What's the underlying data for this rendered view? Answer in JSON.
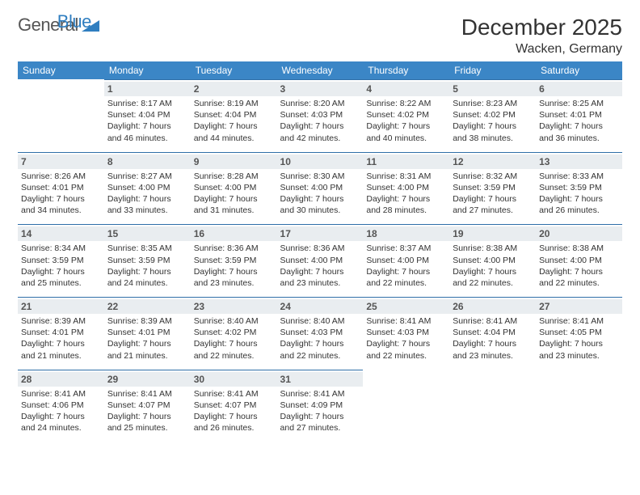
{
  "logo": {
    "word1": "General",
    "word2": "Blue",
    "triangle_color": "#2f7ec0"
  },
  "header": {
    "month_title": "December 2025",
    "location": "Wacken, Germany"
  },
  "colors": {
    "header_bg": "#3b86c6",
    "header_text": "#ffffff",
    "cell_border": "#2f6fa8",
    "daynum_bg": "#e9edf0",
    "daynum_text": "#555555",
    "body_text": "#333333",
    "page_bg": "#ffffff"
  },
  "typography": {
    "title_fontsize": 28,
    "location_fontsize": 16,
    "weekday_fontsize": 12,
    "daynum_fontsize": 12,
    "info_fontsize": 10.5
  },
  "weekdays": [
    "Sunday",
    "Monday",
    "Tuesday",
    "Wednesday",
    "Thursday",
    "Friday",
    "Saturday"
  ],
  "weeks": [
    [
      null,
      {
        "day": "1",
        "sunrise": "Sunrise: 8:17 AM",
        "sunset": "Sunset: 4:04 PM",
        "daylight": "Daylight: 7 hours and 46 minutes."
      },
      {
        "day": "2",
        "sunrise": "Sunrise: 8:19 AM",
        "sunset": "Sunset: 4:04 PM",
        "daylight": "Daylight: 7 hours and 44 minutes."
      },
      {
        "day": "3",
        "sunrise": "Sunrise: 8:20 AM",
        "sunset": "Sunset: 4:03 PM",
        "daylight": "Daylight: 7 hours and 42 minutes."
      },
      {
        "day": "4",
        "sunrise": "Sunrise: 8:22 AM",
        "sunset": "Sunset: 4:02 PM",
        "daylight": "Daylight: 7 hours and 40 minutes."
      },
      {
        "day": "5",
        "sunrise": "Sunrise: 8:23 AM",
        "sunset": "Sunset: 4:02 PM",
        "daylight": "Daylight: 7 hours and 38 minutes."
      },
      {
        "day": "6",
        "sunrise": "Sunrise: 8:25 AM",
        "sunset": "Sunset: 4:01 PM",
        "daylight": "Daylight: 7 hours and 36 minutes."
      }
    ],
    [
      {
        "day": "7",
        "sunrise": "Sunrise: 8:26 AM",
        "sunset": "Sunset: 4:01 PM",
        "daylight": "Daylight: 7 hours and 34 minutes."
      },
      {
        "day": "8",
        "sunrise": "Sunrise: 8:27 AM",
        "sunset": "Sunset: 4:00 PM",
        "daylight": "Daylight: 7 hours and 33 minutes."
      },
      {
        "day": "9",
        "sunrise": "Sunrise: 8:28 AM",
        "sunset": "Sunset: 4:00 PM",
        "daylight": "Daylight: 7 hours and 31 minutes."
      },
      {
        "day": "10",
        "sunrise": "Sunrise: 8:30 AM",
        "sunset": "Sunset: 4:00 PM",
        "daylight": "Daylight: 7 hours and 30 minutes."
      },
      {
        "day": "11",
        "sunrise": "Sunrise: 8:31 AM",
        "sunset": "Sunset: 4:00 PM",
        "daylight": "Daylight: 7 hours and 28 minutes."
      },
      {
        "day": "12",
        "sunrise": "Sunrise: 8:32 AM",
        "sunset": "Sunset: 3:59 PM",
        "daylight": "Daylight: 7 hours and 27 minutes."
      },
      {
        "day": "13",
        "sunrise": "Sunrise: 8:33 AM",
        "sunset": "Sunset: 3:59 PM",
        "daylight": "Daylight: 7 hours and 26 minutes."
      }
    ],
    [
      {
        "day": "14",
        "sunrise": "Sunrise: 8:34 AM",
        "sunset": "Sunset: 3:59 PM",
        "daylight": "Daylight: 7 hours and 25 minutes."
      },
      {
        "day": "15",
        "sunrise": "Sunrise: 8:35 AM",
        "sunset": "Sunset: 3:59 PM",
        "daylight": "Daylight: 7 hours and 24 minutes."
      },
      {
        "day": "16",
        "sunrise": "Sunrise: 8:36 AM",
        "sunset": "Sunset: 3:59 PM",
        "daylight": "Daylight: 7 hours and 23 minutes."
      },
      {
        "day": "17",
        "sunrise": "Sunrise: 8:36 AM",
        "sunset": "Sunset: 4:00 PM",
        "daylight": "Daylight: 7 hours and 23 minutes."
      },
      {
        "day": "18",
        "sunrise": "Sunrise: 8:37 AM",
        "sunset": "Sunset: 4:00 PM",
        "daylight": "Daylight: 7 hours and 22 minutes."
      },
      {
        "day": "19",
        "sunrise": "Sunrise: 8:38 AM",
        "sunset": "Sunset: 4:00 PM",
        "daylight": "Daylight: 7 hours and 22 minutes."
      },
      {
        "day": "20",
        "sunrise": "Sunrise: 8:38 AM",
        "sunset": "Sunset: 4:00 PM",
        "daylight": "Daylight: 7 hours and 22 minutes."
      }
    ],
    [
      {
        "day": "21",
        "sunrise": "Sunrise: 8:39 AM",
        "sunset": "Sunset: 4:01 PM",
        "daylight": "Daylight: 7 hours and 21 minutes."
      },
      {
        "day": "22",
        "sunrise": "Sunrise: 8:39 AM",
        "sunset": "Sunset: 4:01 PM",
        "daylight": "Daylight: 7 hours and 21 minutes."
      },
      {
        "day": "23",
        "sunrise": "Sunrise: 8:40 AM",
        "sunset": "Sunset: 4:02 PM",
        "daylight": "Daylight: 7 hours and 22 minutes."
      },
      {
        "day": "24",
        "sunrise": "Sunrise: 8:40 AM",
        "sunset": "Sunset: 4:03 PM",
        "daylight": "Daylight: 7 hours and 22 minutes."
      },
      {
        "day": "25",
        "sunrise": "Sunrise: 8:41 AM",
        "sunset": "Sunset: 4:03 PM",
        "daylight": "Daylight: 7 hours and 22 minutes."
      },
      {
        "day": "26",
        "sunrise": "Sunrise: 8:41 AM",
        "sunset": "Sunset: 4:04 PM",
        "daylight": "Daylight: 7 hours and 23 minutes."
      },
      {
        "day": "27",
        "sunrise": "Sunrise: 8:41 AM",
        "sunset": "Sunset: 4:05 PM",
        "daylight": "Daylight: 7 hours and 23 minutes."
      }
    ],
    [
      {
        "day": "28",
        "sunrise": "Sunrise: 8:41 AM",
        "sunset": "Sunset: 4:06 PM",
        "daylight": "Daylight: 7 hours and 24 minutes."
      },
      {
        "day": "29",
        "sunrise": "Sunrise: 8:41 AM",
        "sunset": "Sunset: 4:07 PM",
        "daylight": "Daylight: 7 hours and 25 minutes."
      },
      {
        "day": "30",
        "sunrise": "Sunrise: 8:41 AM",
        "sunset": "Sunset: 4:07 PM",
        "daylight": "Daylight: 7 hours and 26 minutes."
      },
      {
        "day": "31",
        "sunrise": "Sunrise: 8:41 AM",
        "sunset": "Sunset: 4:09 PM",
        "daylight": "Daylight: 7 hours and 27 minutes."
      },
      null,
      null,
      null
    ]
  ]
}
